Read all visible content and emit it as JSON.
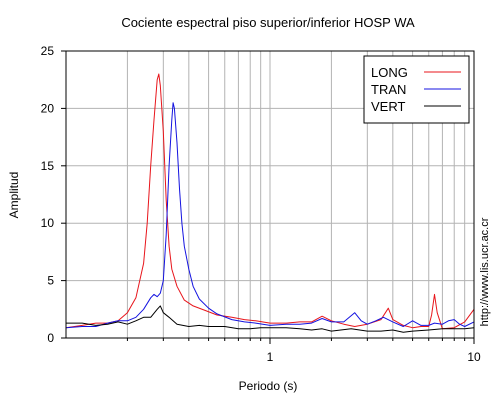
{
  "chart_data": {
    "type": "line",
    "title": "Cociente espectral piso superior/inferior  HOSP WA",
    "xlabel": "Periodo (s)",
    "ylabel": "Amplitud",
    "xscale": "log",
    "xlim": [
      0.1,
      10
    ],
    "ylim": [
      0,
      25
    ],
    "grid": true,
    "legend_position": "top-right",
    "x_ticks": [
      {
        "value": 1,
        "label": "1"
      },
      {
        "value": 10,
        "label": "10"
      }
    ],
    "y_ticks": [
      {
        "value": 0,
        "label": "0"
      },
      {
        "value": 5,
        "label": "5"
      },
      {
        "value": 10,
        "label": "10"
      },
      {
        "value": 15,
        "label": "15"
      },
      {
        "value": 20,
        "label": "20"
      },
      {
        "value": 25,
        "label": "25"
      }
    ],
    "series": [
      {
        "name": "LONG",
        "color": "#e8151b",
        "points": [
          [
            0.1,
            0.9
          ],
          [
            0.12,
            1.1
          ],
          [
            0.14,
            1.3
          ],
          [
            0.16,
            1.3
          ],
          [
            0.18,
            1.5
          ],
          [
            0.2,
            2.2
          ],
          [
            0.22,
            3.5
          ],
          [
            0.24,
            6.5
          ],
          [
            0.25,
            10
          ],
          [
            0.26,
            15
          ],
          [
            0.27,
            19
          ],
          [
            0.28,
            22.5
          ],
          [
            0.285,
            23.0
          ],
          [
            0.29,
            22.0
          ],
          [
            0.3,
            18
          ],
          [
            0.31,
            12
          ],
          [
            0.32,
            8
          ],
          [
            0.33,
            6
          ],
          [
            0.35,
            4.5
          ],
          [
            0.38,
            3.3
          ],
          [
            0.42,
            2.8
          ],
          [
            0.48,
            2.4
          ],
          [
            0.55,
            2.0
          ],
          [
            0.65,
            1.8
          ],
          [
            0.75,
            1.6
          ],
          [
            0.85,
            1.5
          ],
          [
            1.0,
            1.3
          ],
          [
            1.2,
            1.3
          ],
          [
            1.4,
            1.4
          ],
          [
            1.6,
            1.4
          ],
          [
            1.8,
            1.9
          ],
          [
            2.0,
            1.5
          ],
          [
            2.3,
            1.2
          ],
          [
            2.6,
            1.0
          ],
          [
            3.0,
            1.2
          ],
          [
            3.5,
            1.6
          ],
          [
            3.8,
            2.6
          ],
          [
            4.0,
            1.6
          ],
          [
            4.5,
            1.1
          ],
          [
            5.0,
            0.9
          ],
          [
            5.5,
            1.0
          ],
          [
            6.0,
            1.0
          ],
          [
            6.2,
            2.0
          ],
          [
            6.4,
            3.8
          ],
          [
            6.6,
            2.2
          ],
          [
            7.0,
            0.8
          ],
          [
            8.0,
            0.9
          ],
          [
            9.0,
            1.4
          ],
          [
            10.0,
            2.5
          ]
        ]
      },
      {
        "name": "TRAN",
        "color": "#1413e0",
        "points": [
          [
            0.1,
            0.9
          ],
          [
            0.12,
            1.0
          ],
          [
            0.14,
            1.0
          ],
          [
            0.16,
            1.3
          ],
          [
            0.18,
            1.5
          ],
          [
            0.2,
            1.5
          ],
          [
            0.22,
            1.8
          ],
          [
            0.24,
            2.5
          ],
          [
            0.26,
            3.5
          ],
          [
            0.27,
            3.8
          ],
          [
            0.28,
            3.6
          ],
          [
            0.29,
            3.9
          ],
          [
            0.3,
            5.0
          ],
          [
            0.31,
            9
          ],
          [
            0.32,
            15
          ],
          [
            0.33,
            19
          ],
          [
            0.335,
            20.5
          ],
          [
            0.34,
            20.0
          ],
          [
            0.35,
            17
          ],
          [
            0.36,
            13
          ],
          [
            0.37,
            10
          ],
          [
            0.38,
            8
          ],
          [
            0.4,
            6
          ],
          [
            0.42,
            4.5
          ],
          [
            0.45,
            3.4
          ],
          [
            0.5,
            2.6
          ],
          [
            0.55,
            2.1
          ],
          [
            0.65,
            1.6
          ],
          [
            0.75,
            1.4
          ],
          [
            0.85,
            1.3
          ],
          [
            1.0,
            1.1
          ],
          [
            1.2,
            1.2
          ],
          [
            1.4,
            1.2
          ],
          [
            1.6,
            1.3
          ],
          [
            1.8,
            1.7
          ],
          [
            2.0,
            1.4
          ],
          [
            2.3,
            1.4
          ],
          [
            2.6,
            2.2
          ],
          [
            2.8,
            1.5
          ],
          [
            3.0,
            1.2
          ],
          [
            3.3,
            1.5
          ],
          [
            3.6,
            1.8
          ],
          [
            4.0,
            1.4
          ],
          [
            4.5,
            1.0
          ],
          [
            5.0,
            1.5
          ],
          [
            5.5,
            1.1
          ],
          [
            6.0,
            1.1
          ],
          [
            6.4,
            1.3
          ],
          [
            7.0,
            1.2
          ],
          [
            7.5,
            1.5
          ],
          [
            8.0,
            1.6
          ],
          [
            8.5,
            1.2
          ],
          [
            9.0,
            1.0
          ],
          [
            10.0,
            1.4
          ]
        ]
      },
      {
        "name": "VERT",
        "color": "#000000",
        "points": [
          [
            0.1,
            1.3
          ],
          [
            0.12,
            1.3
          ],
          [
            0.14,
            1.1
          ],
          [
            0.16,
            1.2
          ],
          [
            0.18,
            1.4
          ],
          [
            0.2,
            1.2
          ],
          [
            0.22,
            1.5
          ],
          [
            0.24,
            1.8
          ],
          [
            0.26,
            1.8
          ],
          [
            0.28,
            2.5
          ],
          [
            0.29,
            2.8
          ],
          [
            0.3,
            2.2
          ],
          [
            0.32,
            1.8
          ],
          [
            0.35,
            1.2
          ],
          [
            0.4,
            1.0
          ],
          [
            0.45,
            1.1
          ],
          [
            0.5,
            1.0
          ],
          [
            0.55,
            1.0
          ],
          [
            0.6,
            1.0
          ],
          [
            0.7,
            0.8
          ],
          [
            0.8,
            0.8
          ],
          [
            0.9,
            0.9
          ],
          [
            1.0,
            0.9
          ],
          [
            1.2,
            0.9
          ],
          [
            1.4,
            0.8
          ],
          [
            1.6,
            0.7
          ],
          [
            1.8,
            0.8
          ],
          [
            2.0,
            0.6
          ],
          [
            2.5,
            0.8
          ],
          [
            3.0,
            0.6
          ],
          [
            3.5,
            0.6
          ],
          [
            4.0,
            0.7
          ],
          [
            4.5,
            0.5
          ],
          [
            5.0,
            0.6
          ],
          [
            6.0,
            0.7
          ],
          [
            7.0,
            0.8
          ],
          [
            8.0,
            0.8
          ],
          [
            9.0,
            0.8
          ],
          [
            10.0,
            0.9
          ]
        ]
      }
    ]
  },
  "credit_text": "http://www.lis.ucr.ac.cr"
}
